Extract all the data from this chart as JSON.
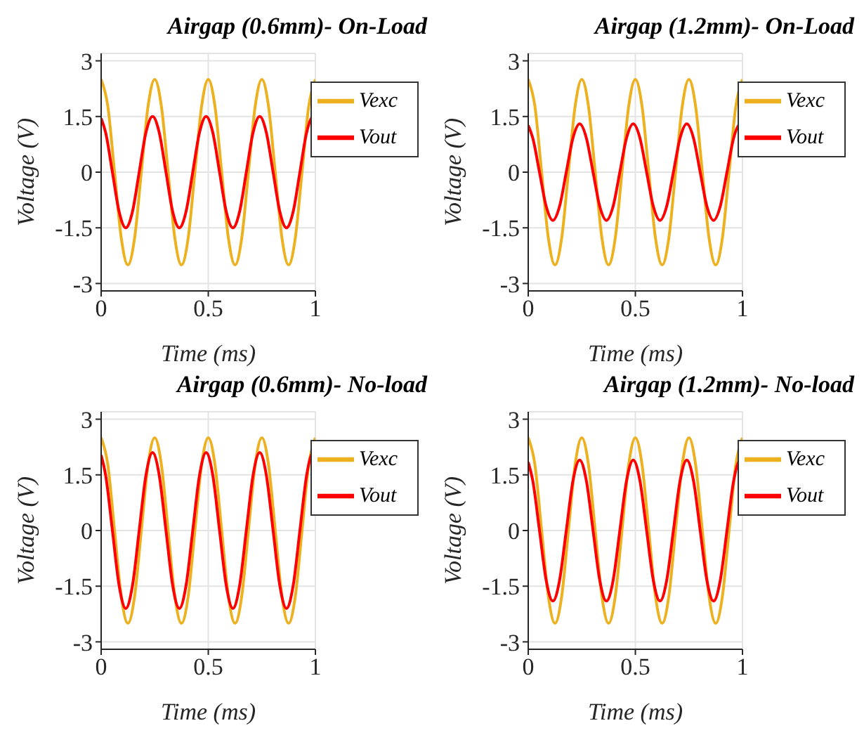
{
  "chart_data": [
    {
      "type": "line",
      "title": "Airgap (0.6mm)- On-Load",
      "xlabel": "Time (ms)",
      "ylabel": "Voltage (V)",
      "xlim": [
        0,
        1
      ],
      "xticks": [
        0,
        0.5,
        1
      ],
      "ylim": [
        -3.2,
        3.2
      ],
      "yticks": [
        -3,
        -1.5,
        0,
        1.5,
        3
      ],
      "grid": true,
      "legend": "top right",
      "series": [
        {
          "name": "Vexc",
          "color": "#edb120",
          "x": [
            0,
            0.03125,
            0.0625,
            0.09375,
            0.125,
            0.15625,
            0.1875,
            0.21875,
            0.25,
            0.28125,
            0.3125,
            0.34375,
            0.375,
            0.40625,
            0.4375,
            0.46875,
            0.5,
            0.53125,
            0.5625,
            0.59375,
            0.625,
            0.65625,
            0.6875,
            0.71875,
            0.75,
            0.78125,
            0.8125,
            0.84375,
            0.875,
            0.90625,
            0.9375,
            0.96875,
            1
          ],
          "values": [
            2.5,
            1.77,
            0,
            -1.77,
            -2.5,
            -1.77,
            0,
            1.77,
            2.5,
            1.77,
            0,
            -1.77,
            -2.5,
            -1.77,
            0,
            1.77,
            2.5,
            1.77,
            0,
            -1.77,
            -2.5,
            -1.77,
            0,
            1.77,
            2.5,
            1.77,
            0,
            -1.77,
            -2.5,
            -1.77,
            0,
            1.77,
            2.5
          ]
        },
        {
          "name": "Vout",
          "color": "#ff0000",
          "x": [
            0,
            0.02125,
            0.0525,
            0.08375,
            0.115,
            0.14625,
            0.1775,
            0.20875,
            0.24,
            0.27125,
            0.3025,
            0.33375,
            0.365,
            0.39625,
            0.4275,
            0.45875,
            0.49,
            0.52125,
            0.5525,
            0.58375,
            0.615,
            0.64625,
            0.6775,
            0.70875,
            0.74,
            0.77125,
            0.8025,
            0.83375,
            0.865,
            0.89625,
            0.9275,
            0.95875,
            0.99,
            1
          ],
          "values": [
            1.45,
            1.06,
            0,
            -1.06,
            -1.5,
            -1.06,
            0,
            1.06,
            1.5,
            1.06,
            0,
            -1.06,
            -1.5,
            -1.06,
            0,
            1.06,
            1.5,
            1.06,
            0,
            -1.06,
            -1.5,
            -1.06,
            0,
            1.06,
            1.5,
            1.06,
            0,
            -1.06,
            -1.5,
            -1.06,
            0,
            1.06,
            1.5,
            1.45
          ]
        }
      ]
    },
    {
      "type": "line",
      "title": "Airgap (1.2mm)- On-Load",
      "xlabel": "Time (ms)",
      "ylabel": "Voltage (V)",
      "xlim": [
        0,
        1
      ],
      "xticks": [
        0,
        0.5,
        1
      ],
      "ylim": [
        -3.2,
        3.2
      ],
      "yticks": [
        -3,
        -1.5,
        0,
        1.5,
        3
      ],
      "grid": true,
      "legend": "top right",
      "series": [
        {
          "name": "Vexc",
          "color": "#edb120",
          "x": [
            0,
            0.03125,
            0.0625,
            0.09375,
            0.125,
            0.15625,
            0.1875,
            0.21875,
            0.25,
            0.28125,
            0.3125,
            0.34375,
            0.375,
            0.40625,
            0.4375,
            0.46875,
            0.5,
            0.53125,
            0.5625,
            0.59375,
            0.625,
            0.65625,
            0.6875,
            0.71875,
            0.75,
            0.78125,
            0.8125,
            0.84375,
            0.875,
            0.90625,
            0.9375,
            0.96875,
            1
          ],
          "values": [
            2.5,
            1.77,
            0,
            -1.77,
            -2.5,
            -1.77,
            0,
            1.77,
            2.5,
            1.77,
            0,
            -1.77,
            -2.5,
            -1.77,
            0,
            1.77,
            2.5,
            1.77,
            0,
            -1.77,
            -2.5,
            -1.77,
            0,
            1.77,
            2.5,
            1.77,
            0,
            -1.77,
            -2.5,
            -1.77,
            0,
            1.77,
            2.5
          ]
        },
        {
          "name": "Vout",
          "color": "#ff0000",
          "x": [
            0,
            0.02125,
            0.0525,
            0.08375,
            0.115,
            0.14625,
            0.1775,
            0.20875,
            0.24,
            0.27125,
            0.3025,
            0.33375,
            0.365,
            0.39625,
            0.4275,
            0.45875,
            0.49,
            0.52125,
            0.5525,
            0.58375,
            0.615,
            0.64625,
            0.6775,
            0.70875,
            0.74,
            0.77125,
            0.8025,
            0.83375,
            0.865,
            0.89625,
            0.9275,
            0.95875,
            0.99,
            1
          ],
          "values": [
            1.26,
            0.92,
            0,
            -0.92,
            -1.3,
            -0.92,
            0,
            0.92,
            1.3,
            0.92,
            0,
            -0.92,
            -1.3,
            -0.92,
            0,
            0.92,
            1.3,
            0.92,
            0,
            -0.92,
            -1.3,
            -0.92,
            0,
            0.92,
            1.3,
            0.92,
            0,
            -0.92,
            -1.3,
            -0.92,
            0,
            0.92,
            1.3,
            1.26
          ]
        }
      ]
    },
    {
      "type": "line",
      "title": "Airgap (0.6mm)- No-load",
      "xlabel": "Time (ms)",
      "ylabel": "Voltage (V)",
      "xlim": [
        0,
        1
      ],
      "xticks": [
        0,
        0.5,
        1
      ],
      "ylim": [
        -3.2,
        3.2
      ],
      "yticks": [
        -3,
        -1.5,
        0,
        1.5,
        3
      ],
      "grid": true,
      "legend": "top right",
      "series": [
        {
          "name": "Vexc",
          "color": "#edb120",
          "x": [
            0,
            0.03125,
            0.0625,
            0.09375,
            0.125,
            0.15625,
            0.1875,
            0.21875,
            0.25,
            0.28125,
            0.3125,
            0.34375,
            0.375,
            0.40625,
            0.4375,
            0.46875,
            0.5,
            0.53125,
            0.5625,
            0.59375,
            0.625,
            0.65625,
            0.6875,
            0.71875,
            0.75,
            0.78125,
            0.8125,
            0.84375,
            0.875,
            0.90625,
            0.9375,
            0.96875,
            1
          ],
          "values": [
            2.5,
            1.77,
            0,
            -1.77,
            -2.5,
            -1.77,
            0,
            1.77,
            2.5,
            1.77,
            0,
            -1.77,
            -2.5,
            -1.77,
            0,
            1.77,
            2.5,
            1.77,
            0,
            -1.77,
            -2.5,
            -1.77,
            0,
            1.77,
            2.5,
            1.77,
            0,
            -1.77,
            -2.5,
            -1.77,
            0,
            1.77,
            2.5
          ]
        },
        {
          "name": "Vout",
          "color": "#ff0000",
          "x": [
            0,
            0.02125,
            0.0525,
            0.08375,
            0.115,
            0.14625,
            0.1775,
            0.20875,
            0.24,
            0.27125,
            0.3025,
            0.33375,
            0.365,
            0.39625,
            0.4275,
            0.45875,
            0.49,
            0.52125,
            0.5525,
            0.58375,
            0.615,
            0.64625,
            0.6775,
            0.70875,
            0.74,
            0.77125,
            0.8025,
            0.83375,
            0.865,
            0.89625,
            0.9275,
            0.95875,
            0.99,
            1
          ],
          "values": [
            2.03,
            1.48,
            0,
            -1.48,
            -2.1,
            -1.48,
            0,
            1.48,
            2.1,
            1.48,
            0,
            -1.48,
            -2.1,
            -1.48,
            0,
            1.48,
            2.1,
            1.48,
            0,
            -1.48,
            -2.1,
            -1.48,
            0,
            1.48,
            2.1,
            1.48,
            0,
            -1.48,
            -2.1,
            -1.48,
            0,
            1.48,
            2.1,
            2.03
          ]
        }
      ]
    },
    {
      "type": "line",
      "title": "Airgap (1.2mm)- No-load",
      "xlabel": "Time (ms)",
      "ylabel": "Voltage (V)",
      "xlim": [
        0,
        1
      ],
      "xticks": [
        0,
        0.5,
        1
      ],
      "ylim": [
        -3.2,
        3.2
      ],
      "yticks": [
        -3,
        -1.5,
        0,
        1.5,
        3
      ],
      "grid": true,
      "legend": "top right",
      "series": [
        {
          "name": "Vexc",
          "color": "#edb120",
          "x": [
            0,
            0.03125,
            0.0625,
            0.09375,
            0.125,
            0.15625,
            0.1875,
            0.21875,
            0.25,
            0.28125,
            0.3125,
            0.34375,
            0.375,
            0.40625,
            0.4375,
            0.46875,
            0.5,
            0.53125,
            0.5625,
            0.59375,
            0.625,
            0.65625,
            0.6875,
            0.71875,
            0.75,
            0.78125,
            0.8125,
            0.84375,
            0.875,
            0.90625,
            0.9375,
            0.96875,
            1
          ],
          "values": [
            2.5,
            1.77,
            0,
            -1.77,
            -2.5,
            -1.77,
            0,
            1.77,
            2.5,
            1.77,
            0,
            -1.77,
            -2.5,
            -1.77,
            0,
            1.77,
            2.5,
            1.77,
            0,
            -1.77,
            -2.5,
            -1.77,
            0,
            1.77,
            2.5,
            1.77,
            0,
            -1.77,
            -2.5,
            -1.77,
            0,
            1.77,
            2.5
          ]
        },
        {
          "name": "Vout",
          "color": "#ff0000",
          "x": [
            0,
            0.02125,
            0.0525,
            0.08375,
            0.115,
            0.14625,
            0.1775,
            0.20875,
            0.24,
            0.27125,
            0.3025,
            0.33375,
            0.365,
            0.39625,
            0.4275,
            0.45875,
            0.49,
            0.52125,
            0.5525,
            0.58375,
            0.615,
            0.64625,
            0.6775,
            0.70875,
            0.74,
            0.77125,
            0.8025,
            0.83375,
            0.865,
            0.89625,
            0.9275,
            0.95875,
            0.99,
            1
          ],
          "values": [
            1.84,
            1.34,
            0,
            -1.34,
            -1.9,
            -1.34,
            0,
            1.34,
            1.9,
            1.34,
            0,
            -1.34,
            -1.9,
            -1.34,
            0,
            1.34,
            1.9,
            1.34,
            0,
            -1.34,
            -1.9,
            -1.34,
            0,
            1.34,
            1.9,
            1.34,
            0,
            -1.34,
            -1.9,
            -1.34,
            0,
            1.34,
            1.9,
            1.84
          ]
        }
      ]
    }
  ]
}
